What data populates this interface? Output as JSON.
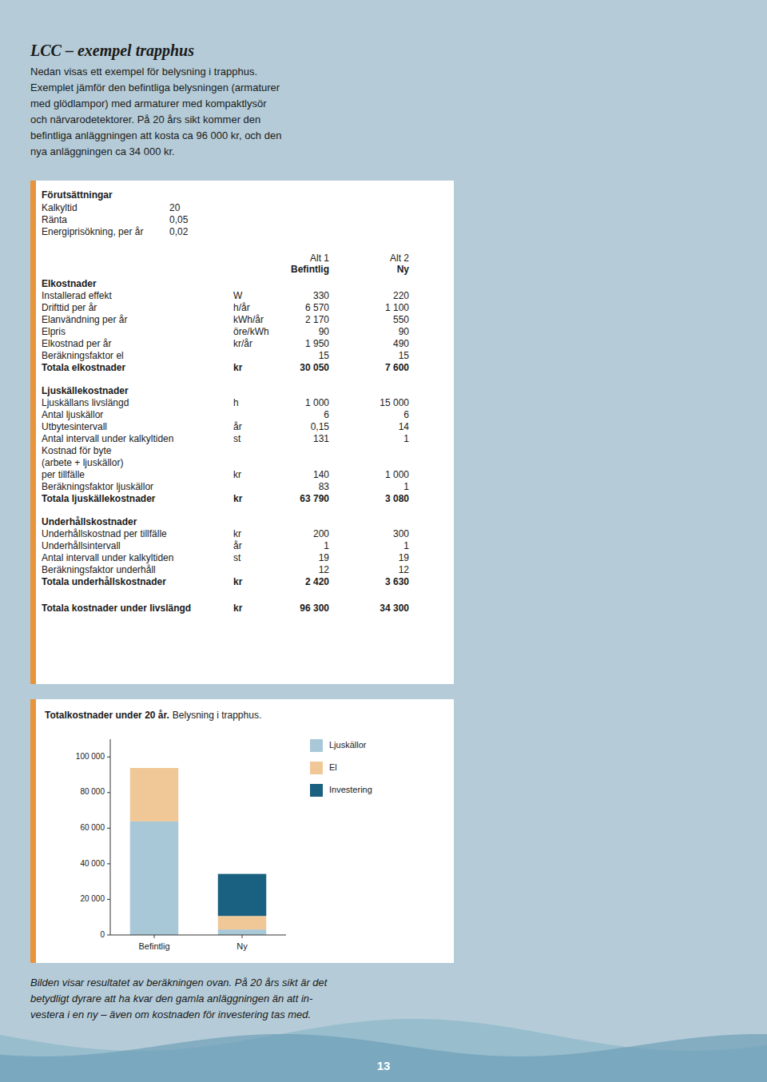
{
  "title": "LCC – exempel trapphus",
  "intro": [
    "Nedan visas ett exempel för belysning i trapphus.",
    "Exemplet jämför den befintliga belysningen (armaturer",
    "med glödlampor) med armaturer med kompaktlysör",
    "och närvarodetektorer. På 20 års sikt kommer den",
    "befintliga anläggningen att kosta ca 96 000 kr, och den",
    "nya anläggningen ca 34 000 kr."
  ],
  "table": {
    "conditions_label": "Förutsättningar",
    "conditions": [
      [
        "Kalkyltid",
        "20"
      ],
      [
        "Ränta",
        "0,05"
      ],
      [
        "Energiprisökning, per år",
        "0,02"
      ]
    ],
    "column_headers": [
      [
        "Alt 1",
        "Befintlig"
      ],
      [
        "Alt 2",
        "Ny"
      ]
    ],
    "sections": [
      {
        "header": "Elkostnader",
        "rows": [
          {
            "label": "Installerad effekt",
            "unit": "W",
            "values": [
              "330",
              "220"
            ]
          },
          {
            "label": "Drifttid per år",
            "unit": "h/år",
            "values": [
              "6 570",
              "1 100"
            ]
          },
          {
            "label": "Elanvändning per år",
            "unit": "kWh/år",
            "values": [
              "2 170",
              "550"
            ]
          },
          {
            "label": "Elpris",
            "unit": "öre/kWh",
            "values": [
              "90",
              "90"
            ]
          },
          {
            "label": "Elkostnad per år",
            "unit": "kr/år",
            "values": [
              "1 950",
              "490"
            ]
          },
          {
            "label": "Beräkningsfaktor el",
            "values": [
              "15",
              "15"
            ]
          }
        ],
        "total": {
          "label": "Totala elkostnader",
          "unit": "kr",
          "values": [
            "30 050",
            "7 600"
          ]
        }
      },
      {
        "header": "Ljuskällekostnader",
        "rows": [
          {
            "label": "Ljuskällans livslängd",
            "unit": "h",
            "values": [
              "1 000",
              "15 000"
            ]
          },
          {
            "label": "Antal ljuskällor",
            "values": [
              "6",
              "6"
            ]
          },
          {
            "label": "Utbytesintervall",
            "unit": "år",
            "values": [
              "0,15",
              "14"
            ]
          },
          {
            "label": "Antal intervall under kalkyltiden",
            "unit": "st",
            "values": [
              "131",
              "1"
            ]
          },
          {
            "label": "Kostnad för byte"
          },
          {
            "label": "(arbete + ljuskällor)"
          },
          {
            "label": "per tillfälle",
            "unit": "kr",
            "values": [
              "140",
              "1 000"
            ]
          },
          {
            "label": "Beräkningsfaktor ljuskällor",
            "values": [
              "83",
              "1"
            ]
          }
        ],
        "total": {
          "label": "Totala ljuskällekostnader",
          "unit": "kr",
          "values": [
            "63 790",
            "3 080"
          ]
        }
      },
      {
        "header": "Underhållskostnader",
        "rows": [
          {
            "label": "Underhållskostnad per tillfälle",
            "unit": "kr",
            "values": [
              "200",
              "300"
            ]
          },
          {
            "label": "Underhållsintervall",
            "unit": "år",
            "values": [
              "1",
              "1"
            ]
          },
          {
            "label": "Antal intervall under kalkyltiden",
            "unit": "st",
            "values": [
              "19",
              "19"
            ]
          },
          {
            "label": "Beräkningsfaktor underhåll",
            "values": [
              "12",
              "12"
            ]
          }
        ],
        "total": {
          "label": "Totala underhållskostnader",
          "unit": "kr",
          "values": [
            "2 420",
            "3 630"
          ]
        }
      }
    ],
    "total": {
      "label": "Totala kostnader under livslängd",
      "unit": "kr",
      "values": [
        "96 300",
        "34 300"
      ]
    }
  },
  "chart_data": {
    "type": "bar",
    "stacked": true,
    "title": "Totalkostnader under 20 år.",
    "subtitle": "Belysning i trapphus.",
    "categories": [
      "Befintlig",
      "Ny"
    ],
    "series": [
      {
        "name": "Ljuskällor",
        "color": "#a8c8d8",
        "values": [
          63790,
          3080
        ]
      },
      {
        "name": "El",
        "color": "#f0c898",
        "values": [
          30050,
          7600
        ]
      },
      {
        "name": "Investering",
        "color": "#1a6080",
        "values": [
          0,
          23620
        ]
      }
    ],
    "ylim": [
      0,
      110000
    ],
    "yticks": [
      0,
      {
        "value": 20000,
        "label": "20 000"
      },
      {
        "value": 40000,
        "label": "40 000"
      },
      {
        "value": 60000,
        "label": "60 000"
      },
      {
        "value": 80000,
        "label": "80 000"
      },
      {
        "value": 100000,
        "label": "100 000"
      }
    ],
    "grid": false,
    "legend": "right"
  },
  "footer": [
    "Bilden visar resultatet av beräkningen ovan. På 20 års sikt är det",
    "betydligt dyrare att ha kvar den gamla anläggningen än att in-",
    "vestera i en ny – även om kostnaden för investering tas med."
  ],
  "page_number": "13"
}
